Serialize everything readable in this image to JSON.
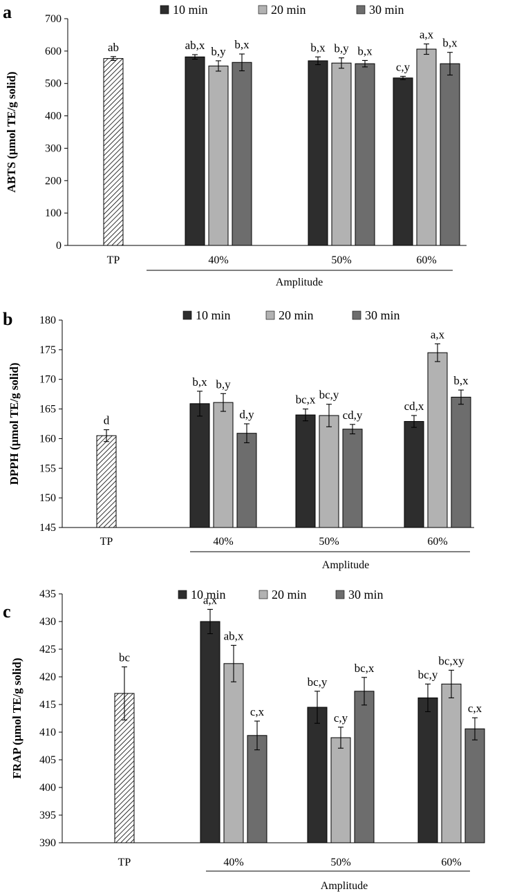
{
  "colors": {
    "min10": "#2d2d2d",
    "min20": "#b2b2b2",
    "min30": "#6d6d6d",
    "hatch_stroke": "#000000",
    "axis": "#000000"
  },
  "chart_data": [
    {
      "type": "bar",
      "panel": "a",
      "ylabel": "ABTS (μmol TE/g solid)",
      "ylim": [
        0,
        700
      ],
      "yticks": [
        0,
        100,
        200,
        300,
        400,
        500,
        600,
        700
      ],
      "grid": false,
      "legend": "top",
      "legend_items": [
        "10 min",
        "20 min",
        "30 min"
      ],
      "control": {
        "label": "TP",
        "value": 577,
        "error": 6,
        "sig": "ab"
      },
      "groups": [
        {
          "label": "40%",
          "bars": [
            {
              "series": "10 min",
              "value": 582,
              "error": 7,
              "sig": "ab,x"
            },
            {
              "series": "20 min",
              "value": 554,
              "error": 16,
              "sig": "b,y"
            },
            {
              "series": "30 min",
              "value": 565,
              "error": 26,
              "sig": "b,x"
            }
          ]
        },
        {
          "label": "50%",
          "bars": [
            {
              "series": "10 min",
              "value": 570,
              "error": 12,
              "sig": "b,x"
            },
            {
              "series": "20 min",
              "value": 563,
              "error": 16,
              "sig": "b,y"
            },
            {
              "series": "30 min",
              "value": 561,
              "error": 10,
              "sig": "b,x"
            }
          ]
        },
        {
          "label": "60%",
          "bars": [
            {
              "series": "10 min",
              "value": 517,
              "error": 5,
              "sig": "c,y"
            },
            {
              "series": "20 min",
              "value": 606,
              "error": 16,
              "sig": "a,x"
            },
            {
              "series": "30 min",
              "value": 561,
              "error": 35,
              "sig": "b,x"
            }
          ]
        }
      ],
      "xlabel": "Amplitude"
    },
    {
      "type": "bar",
      "panel": "b",
      "ylabel": "DPPH (μmol TE/g solid)",
      "ylim": [
        145,
        180
      ],
      "yticks": [
        145,
        150,
        155,
        160,
        165,
        170,
        175,
        180
      ],
      "grid": false,
      "legend": "top",
      "legend_items": [
        "10 min",
        "20 min",
        "30 min"
      ],
      "control": {
        "label": "TP",
        "value": 160.5,
        "error": 1.0,
        "sig": "d"
      },
      "groups": [
        {
          "label": "40%",
          "bars": [
            {
              "series": "10 min",
              "value": 165.9,
              "error": 2.1,
              "sig": "b,x"
            },
            {
              "series": "20 min",
              "value": 166.1,
              "error": 1.5,
              "sig": "b,y"
            },
            {
              "series": "30 min",
              "value": 160.9,
              "error": 1.6,
              "sig": "d,y"
            }
          ]
        },
        {
          "label": "50%",
          "bars": [
            {
              "series": "10 min",
              "value": 164.0,
              "error": 1.0,
              "sig": "bc,x"
            },
            {
              "series": "20 min",
              "value": 163.9,
              "error": 1.9,
              "sig": "bc,y"
            },
            {
              "series": "30 min",
              "value": 161.6,
              "error": 0.8,
              "sig": "cd,y"
            }
          ]
        },
        {
          "label": "60%",
          "bars": [
            {
              "series": "10 min",
              "value": 162.9,
              "error": 1.0,
              "sig": "cd,x"
            },
            {
              "series": "20 min",
              "value": 174.5,
              "error": 1.5,
              "sig": "a,x"
            },
            {
              "series": "30 min",
              "value": 167.0,
              "error": 1.2,
              "sig": "b,x"
            }
          ]
        }
      ],
      "xlabel": "Amplitude"
    },
    {
      "type": "bar",
      "panel": "c",
      "ylabel": "FRAP (μmol TE/g solid)",
      "ylim": [
        390,
        435
      ],
      "yticks": [
        390,
        395,
        400,
        405,
        410,
        415,
        420,
        425,
        430,
        435
      ],
      "grid": false,
      "legend": "top",
      "legend_items": [
        "10 min",
        "20 min",
        "30 min"
      ],
      "control": {
        "label": "TP",
        "value": 417,
        "error": 4.8,
        "sig": "bc"
      },
      "groups": [
        {
          "label": "40%",
          "bars": [
            {
              "series": "10 min",
              "value": 430,
              "error": 2.2,
              "sig": "a,x"
            },
            {
              "series": "20 min",
              "value": 422.4,
              "error": 3.3,
              "sig": "ab,x"
            },
            {
              "series": "30 min",
              "value": 409.4,
              "error": 2.6,
              "sig": "c,x"
            }
          ]
        },
        {
          "label": "50%",
          "bars": [
            {
              "series": "10 min",
              "value": 414.5,
              "error": 2.9,
              "sig": "bc,y"
            },
            {
              "series": "20 min",
              "value": 409.0,
              "error": 1.9,
              "sig": "c,y"
            },
            {
              "series": "30 min",
              "value": 417.4,
              "error": 2.5,
              "sig": "bc,x"
            }
          ]
        },
        {
          "label": "60%",
          "bars": [
            {
              "series": "10 min",
              "value": 416.2,
              "error": 2.5,
              "sig": "bc,y"
            },
            {
              "series": "20 min",
              "value": 418.7,
              "error": 2.5,
              "sig": "bc,xy"
            },
            {
              "series": "30 min",
              "value": 410.6,
              "error": 2.0,
              "sig": "c,x"
            }
          ]
        }
      ],
      "xlabel": "Amplitude"
    }
  ]
}
